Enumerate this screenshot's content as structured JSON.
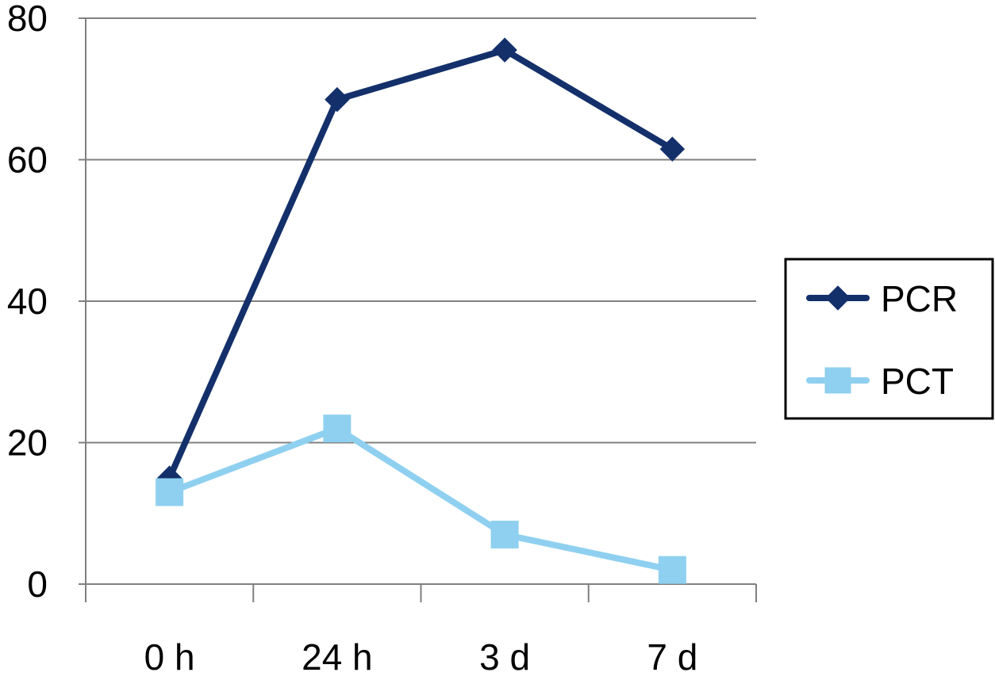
{
  "chart_data": {
    "type": "line",
    "categories": [
      "0 h",
      "24 h",
      "3 d",
      "7 d"
    ],
    "ylim": [
      0,
      80
    ],
    "yticks": [
      "0",
      "20",
      "40",
      "60",
      "80"
    ],
    "grid": true,
    "legend_position": "right",
    "series": [
      {
        "name": "PCR",
        "values": [
          15,
          68.5,
          75.5,
          61.5
        ],
        "color": "#14306b",
        "marker": "diamond"
      },
      {
        "name": "PCT",
        "values": [
          13,
          22,
          7,
          2
        ],
        "color": "#8fd0f0",
        "marker": "square"
      }
    ]
  }
}
